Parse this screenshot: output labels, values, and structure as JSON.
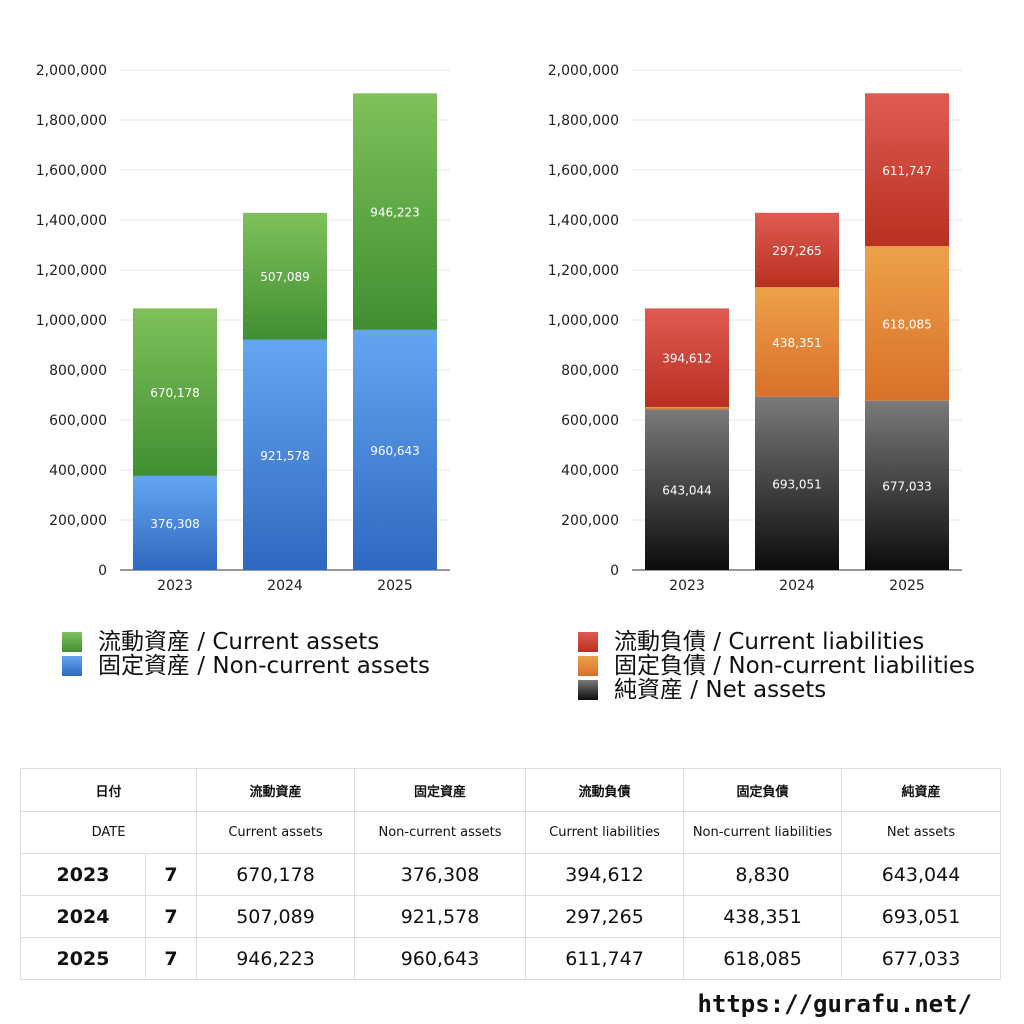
{
  "chart_data": [
    {
      "type": "bar",
      "stacked": true,
      "categories": [
        "2023",
        "2024",
        "2025"
      ],
      "ylim": [
        0,
        2000000
      ],
      "yticks": [
        "0",
        "200,000",
        "400,000",
        "600,000",
        "800,000",
        "1,000,000",
        "1,200,000",
        "1,400,000",
        "1,600,000",
        "1,800,000",
        "2,000,000"
      ],
      "grid": true,
      "legend_position": "bottom",
      "series": [
        {
          "name": "固定資産 / Non-current assets",
          "values": [
            376308,
            921578,
            960643
          ],
          "labels": [
            "376,308",
            "921,578",
            "960,643"
          ],
          "color_top": "#64a6f0",
          "color_bottom": "#2f68c0"
        },
        {
          "name": "流動資産 / Current assets",
          "values": [
            670178,
            507089,
            946223
          ],
          "labels": [
            "670,178",
            "507,089",
            "946,223"
          ],
          "color_top": "#7fc15a",
          "color_bottom": "#3f8f32"
        }
      ]
    },
    {
      "type": "bar",
      "stacked": true,
      "categories": [
        "2023",
        "2024",
        "2025"
      ],
      "ylim": [
        0,
        2000000
      ],
      "yticks": [
        "0",
        "200,000",
        "400,000",
        "600,000",
        "800,000",
        "1,000,000",
        "1,200,000",
        "1,400,000",
        "1,600,000",
        "1,800,000",
        "2,000,000"
      ],
      "grid": true,
      "legend_position": "bottom",
      "series": [
        {
          "name": "純資産 / Net assets",
          "values": [
            643044,
            693051,
            677033
          ],
          "labels": [
            "643,044",
            "693,051",
            "677,033"
          ],
          "color_top": "#7a7a7a",
          "color_bottom": "#0c0c0c"
        },
        {
          "name": "固定負債 / Non-current liabilities",
          "values": [
            8830,
            438351,
            618085
          ],
          "labels": [
            "8,830",
            "438,351",
            "618,085"
          ],
          "color_top": "#eda14a",
          "color_bottom": "#d8702a"
        },
        {
          "name": "流動負債 / Current liabilities",
          "values": [
            394612,
            297265,
            611747
          ],
          "labels": [
            "394,612",
            "297,265",
            "611,747"
          ],
          "color_top": "#df5b52",
          "color_bottom": "#b8301f"
        }
      ]
    }
  ],
  "legend_left": {
    "current_assets": "流動資産 / Current assets",
    "non_current_assets": "固定資産 / Non-current assets"
  },
  "legend_right": {
    "current_liabilities": "流動負債 / Current liabilities",
    "non_current_liabilities": "固定負債 / Non-current liabilities",
    "net_assets": "純資産 / Net assets"
  },
  "table": {
    "header_jp": {
      "date": "日付",
      "current_assets": "流動資産",
      "non_current_assets": "固定資産",
      "current_liabilities": "流動負債",
      "non_current_liabilities": "固定負債",
      "net_assets": "純資産"
    },
    "header_en": {
      "date": "DATE",
      "current_assets": "Current assets",
      "non_current_assets": "Non-current assets",
      "current_liabilities": "Current liabilities",
      "non_current_liabilities": "Non-current liabilities",
      "net_assets": "Net assets"
    },
    "rows": [
      {
        "year": "2023",
        "month": "7",
        "current_assets": "670,178",
        "non_current_assets": "376,308",
        "current_liabilities": "394,612",
        "non_current_liabilities": "8,830",
        "net_assets": "643,044"
      },
      {
        "year": "2024",
        "month": "7",
        "current_assets": "507,089",
        "non_current_assets": "921,578",
        "current_liabilities": "297,265",
        "non_current_liabilities": "438,351",
        "net_assets": "693,051"
      },
      {
        "year": "2025",
        "month": "7",
        "current_assets": "946,223",
        "non_current_assets": "960,643",
        "current_liabilities": "611,747",
        "non_current_liabilities": "618,085",
        "net_assets": "677,033"
      }
    ]
  },
  "site_url": "https://gurafu.net/"
}
